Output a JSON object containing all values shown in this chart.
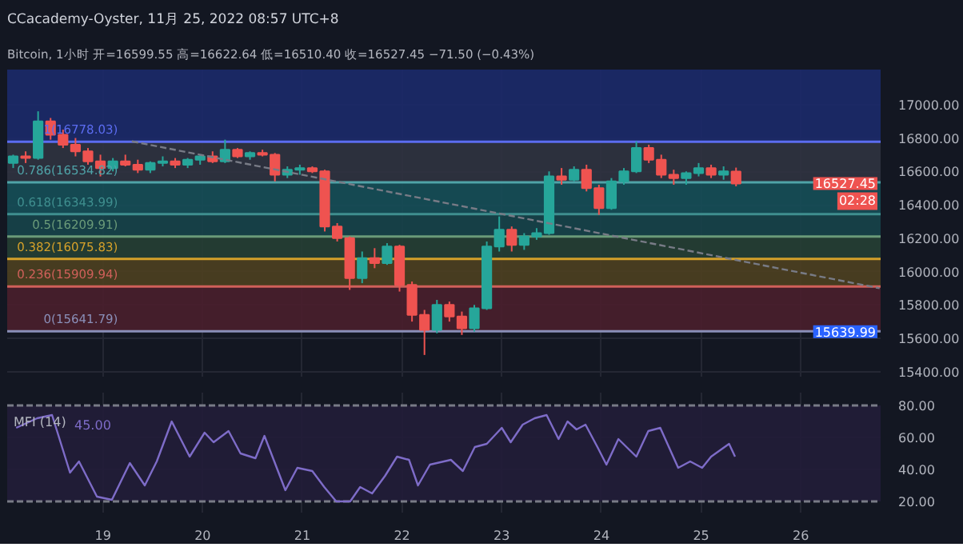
{
  "chart_data": [
    {
      "type": "candlestick",
      "title": "CCacademy-Oyster, 11月 25, 2022 08:57 UTC+8",
      "subtitle": "Bitcoin, 1小时  开=16599.55 高=16622.64 低=16510.40 收=16527.45 −71.50 (−0.43%)",
      "x": [
        18.1,
        18.225,
        18.35,
        18.475,
        18.6,
        18.725,
        18.85,
        18.975,
        19.1,
        19.225,
        19.35,
        19.475,
        19.6,
        19.725,
        19.85,
        19.975,
        20.1,
        20.225,
        20.35,
        20.475,
        20.6,
        20.725,
        20.85,
        20.975,
        21.1,
        21.225,
        21.35,
        21.475,
        21.6,
        21.725,
        21.85,
        21.975,
        22.1,
        22.225,
        22.35,
        22.475,
        22.6,
        22.725,
        22.85,
        22.975,
        23.1,
        23.225,
        23.35,
        23.475,
        23.6,
        23.725,
        23.85,
        23.975,
        24.1,
        24.225,
        24.35,
        24.475,
        24.6,
        24.725,
        24.85,
        24.975,
        25.1,
        25.225,
        25.35
      ],
      "ohlc": [
        [
          16650,
          16700,
          16620,
          16690
        ],
        [
          16690,
          16720,
          16650,
          16680
        ],
        [
          16680,
          16960,
          16670,
          16900
        ],
        [
          16900,
          16920,
          16790,
          16820
        ],
        [
          16820,
          16850,
          16740,
          16760
        ],
        [
          16760,
          16800,
          16690,
          16720
        ],
        [
          16720,
          16740,
          16640,
          16660
        ],
        [
          16660,
          16700,
          16570,
          16620
        ],
        [
          16620,
          16680,
          16600,
          16660
        ],
        [
          16660,
          16700,
          16630,
          16640
        ],
        [
          16640,
          16670,
          16590,
          16610
        ],
        [
          16610,
          16660,
          16590,
          16650
        ],
        [
          16650,
          16690,
          16630,
          16660
        ],
        [
          16660,
          16680,
          16620,
          16640
        ],
        [
          16640,
          16680,
          16620,
          16670
        ],
        [
          16670,
          16700,
          16640,
          16690
        ],
        [
          16690,
          16720,
          16650,
          16660
        ],
        [
          16660,
          16790,
          16650,
          16730
        ],
        [
          16730,
          16740,
          16680,
          16690
        ],
        [
          16690,
          16720,
          16670,
          16710
        ],
        [
          16710,
          16730,
          16690,
          16700
        ],
        [
          16700,
          16710,
          16540,
          16580
        ],
        [
          16580,
          16630,
          16560,
          16610
        ],
        [
          16610,
          16640,
          16580,
          16620
        ],
        [
          16620,
          16630,
          16590,
          16600
        ],
        [
          16600,
          16610,
          16240,
          16270
        ],
        [
          16270,
          16290,
          16180,
          16200
        ],
        [
          16200,
          16210,
          15890,
          15960
        ],
        [
          15960,
          16120,
          15930,
          16080
        ],
        [
          16080,
          16140,
          16020,
          16050
        ],
        [
          16050,
          16170,
          16040,
          16150
        ],
        [
          16150,
          16160,
          15880,
          15920
        ],
        [
          15920,
          15940,
          15700,
          15740
        ],
        [
          15740,
          15770,
          15500,
          15650
        ],
        [
          15650,
          15830,
          15630,
          15800
        ],
        [
          15800,
          15820,
          15700,
          15730
        ],
        [
          15730,
          15760,
          15620,
          15660
        ],
        [
          15660,
          15800,
          15640,
          15780
        ],
        [
          15780,
          16180,
          15770,
          16150
        ],
        [
          16150,
          16330,
          16120,
          16250
        ],
        [
          16250,
          16270,
          16120,
          16160
        ],
        [
          16160,
          16230,
          16130,
          16210
        ],
        [
          16210,
          16260,
          16190,
          16230
        ],
        [
          16230,
          16600,
          16220,
          16570
        ],
        [
          16570,
          16620,
          16520,
          16550
        ],
        [
          16550,
          16630,
          16540,
          16610
        ],
        [
          16610,
          16640,
          16480,
          16500
        ],
        [
          16500,
          16520,
          16340,
          16380
        ],
        [
          16380,
          16560,
          16370,
          16540
        ],
        [
          16540,
          16620,
          16520,
          16600
        ],
        [
          16600,
          16780,
          16590,
          16740
        ],
        [
          16740,
          16760,
          16650,
          16670
        ],
        [
          16670,
          16700,
          16560,
          16580
        ],
        [
          16580,
          16610,
          16520,
          16560
        ],
        [
          16560,
          16600,
          16520,
          16590
        ],
        [
          16590,
          16650,
          16570,
          16620
        ],
        [
          16620,
          16640,
          16560,
          16580
        ],
        [
          16580,
          16630,
          16550,
          16600
        ],
        [
          16599.55,
          16622.64,
          16510.4,
          16527.45
        ]
      ],
      "series": [
        {
          "type": "line",
          "color": "#787b86",
          "line_style": "dashed",
          "x": [
            19.29,
            26.79
          ],
          "values": [
            16780,
            15900
          ]
        }
      ],
      "xlim": [
        18.04,
        26.8
      ],
      "ylim": [
        15370,
        17210
      ],
      "xticks": [
        19,
        20,
        21,
        22,
        23,
        24,
        25,
        26
      ],
      "yticks": [
        {
          "value": 15400,
          "label": "15400.00"
        },
        {
          "value": 15600,
          "label": "15600.00"
        },
        {
          "value": 15800,
          "label": "15800.00"
        },
        {
          "value": 16000,
          "label": "16000.00"
        },
        {
          "value": 16200,
          "label": "16200.00"
        },
        {
          "value": 16400,
          "label": "16400.00"
        },
        {
          "value": 16600,
          "label": "16600.00"
        },
        {
          "value": 16800,
          "label": "16800.00"
        },
        {
          "value": 17000,
          "label": "17000.00"
        }
      ],
      "tick_labels": "y",
      "grid": true,
      "ref_lines": [
        {
          "axis": "y",
          "value": 16778.03,
          "label": "1(16778.03)",
          "color": "#5b6cf0"
        },
        {
          "axis": "y",
          "value": 16534.82,
          "label": "0.786(16534.82)",
          "color": "#4fa3a8"
        },
        {
          "axis": "y",
          "value": 16343.99,
          "label": "0.618(16343.99)",
          "color": "#3f8f8f"
        },
        {
          "axis": "y",
          "value": 16209.91,
          "label": "0.5(16209.91)",
          "color": "#6a9a78"
        },
        {
          "axis": "y",
          "value": 16075.83,
          "label": "0.382(16075.83)",
          "color": "#d4a02a"
        },
        {
          "axis": "y",
          "value": 15909.94,
          "label": "0.236(15909.94)",
          "color": "#d0605a"
        },
        {
          "axis": "y",
          "value": 15641.79,
          "label": "0(15641.79)",
          "color": "#8a8fb8"
        }
      ],
      "bands": [
        {
          "axis": "y",
          "from": 16778.03,
          "to": 17210,
          "color": "#1c2a6a"
        },
        {
          "axis": "y",
          "from": 16534.82,
          "to": 16778.03,
          "color": "#303340"
        },
        {
          "axis": "y",
          "from": 16343.99,
          "to": 16534.82,
          "color": "#164f58"
        },
        {
          "axis": "y",
          "from": 16209.91,
          "to": 16343.99,
          "color": "#17444a"
        },
        {
          "axis": "y",
          "from": 16075.83,
          "to": 16209.91,
          "color": "#263f34"
        },
        {
          "axis": "y",
          "from": 15909.94,
          "to": 16075.83,
          "color": "#4e4020"
        },
        {
          "axis": "y",
          "from": 15641.79,
          "to": 15909.94,
          "color": "#4a1f2c"
        }
      ],
      "annotations": [
        {
          "text": "16527.45",
          "y": 16527.45
        },
        "02:28",
        {
          "text": "15639.99",
          "y": 15639.99
        }
      ]
    },
    {
      "type": "line",
      "title": "MFI (14)",
      "annotations": [
        "45.00"
      ],
      "series": [
        {
          "color": "#7e6cc8",
          "x": [
            18.13,
            18.34,
            18.49,
            18.67,
            18.76,
            18.94,
            19.09,
            19.27,
            19.42,
            19.54,
            19.69,
            19.87,
            20.02,
            20.11,
            20.26,
            20.38,
            20.53,
            20.62,
            20.83,
            20.95,
            21.1,
            21.22,
            21.34,
            21.48,
            21.58,
            21.7,
            21.83,
            21.95,
            22.07,
            22.16,
            22.28,
            22.49,
            22.61,
            22.73,
            22.85,
            23.0,
            23.09,
            23.21,
            23.33,
            23.45,
            23.57,
            23.66,
            23.75,
            23.84,
            23.96,
            24.05,
            24.17,
            24.35,
            24.47,
            24.59,
            24.77,
            24.89,
            25.01,
            25.1,
            25.19,
            25.28,
            25.34
          ],
          "values": [
            66,
            72,
            74,
            38,
            45,
            23,
            21,
            44,
            30,
            45,
            70,
            48,
            63,
            57,
            64,
            50,
            47,
            61,
            27,
            41,
            39,
            29,
            20,
            20,
            29,
            25,
            36,
            48,
            46,
            30,
            43,
            46,
            39,
            54,
            56,
            66,
            57,
            68,
            72,
            74,
            59,
            70,
            65,
            68,
            54,
            43,
            59,
            48,
            64,
            66,
            41,
            45,
            41,
            48,
            52,
            56,
            48
          ]
        }
      ],
      "xlim": [
        18.04,
        26.8
      ],
      "ylim": [
        13,
        88
      ],
      "xticks": [
        {
          "value": 19,
          "label": "19"
        },
        {
          "value": 20,
          "label": "20"
        },
        {
          "value": 21,
          "label": "21"
        },
        {
          "value": 22,
          "label": "22"
        },
        {
          "value": 23,
          "label": "23"
        },
        {
          "value": 24,
          "label": "24"
        },
        {
          "value": 25,
          "label": "25"
        },
        {
          "value": 26,
          "label": "26"
        }
      ],
      "yticks": [
        {
          "value": 20,
          "label": "20.00"
        },
        {
          "value": 40,
          "label": "40.00"
        },
        {
          "value": 60,
          "label": "60.00"
        },
        {
          "value": 80,
          "label": "80.00"
        }
      ],
      "grid": true,
      "line_style": "solid",
      "ref_lines": [
        {
          "axis": "y",
          "value": 80,
          "color": "#787b86",
          "line_style": "dashed"
        },
        {
          "axis": "y",
          "value": 20,
          "color": "#787b86",
          "line_style": "dashed"
        }
      ],
      "bands": [
        {
          "axis": "y",
          "from": 20,
          "to": 80,
          "color": "#221d38"
        }
      ]
    }
  ]
}
